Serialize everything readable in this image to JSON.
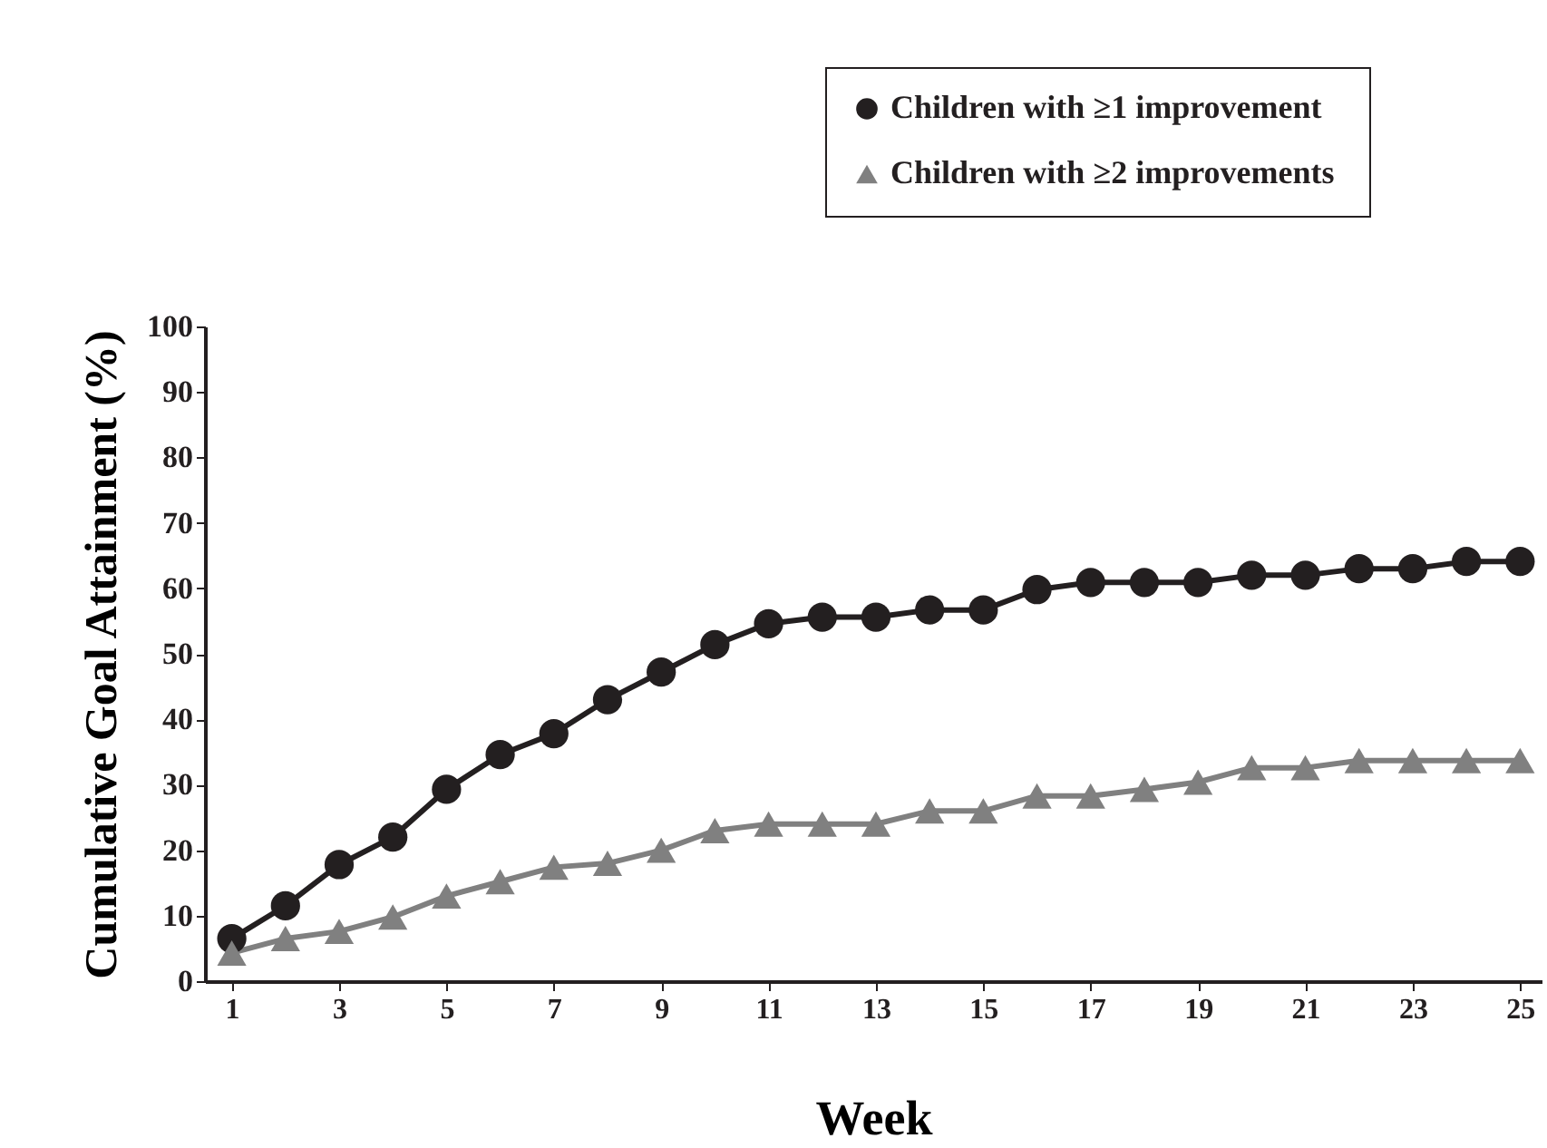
{
  "chart_data": {
    "type": "line",
    "xlabel": "Week",
    "ylabel": "Cumulative Goal Attainment (%)",
    "x": [
      1,
      2,
      3,
      4,
      5,
      6,
      7,
      8,
      9,
      10,
      11,
      12,
      13,
      14,
      15,
      16,
      17,
      18,
      19,
      20,
      21,
      22,
      23,
      24,
      25
    ],
    "xlim": [
      0.5,
      25.4
    ],
    "xticks": [
      1,
      3,
      5,
      7,
      9,
      11,
      13,
      15,
      17,
      19,
      21,
      23,
      25
    ],
    "ylim": [
      0,
      100
    ],
    "yticks": [
      0,
      10,
      20,
      30,
      40,
      50,
      60,
      70,
      80,
      90,
      100
    ],
    "grid": false,
    "legend": "top right",
    "line_style": "solid",
    "series": [
      {
        "name": "Children with  ≥1 improvement",
        "color": "#231f20",
        "marker": "circle",
        "values": [
          6.5,
          11.5,
          17.8,
          22,
          29.3,
          34.6,
          37.8,
          43,
          47.2,
          51.4,
          54.6,
          55.6,
          55.6,
          56.7,
          56.7,
          59.8,
          60.9,
          60.9,
          60.9,
          62,
          62,
          63,
          63,
          64.1,
          64.1
        ]
      },
      {
        "name": "Children with  ≥2 improvements",
        "color": "#808080",
        "marker": "triangle",
        "values": [
          4.3,
          6.5,
          7.6,
          9.8,
          13,
          15.2,
          17.4,
          18,
          20,
          23,
          24,
          24,
          24,
          26,
          26,
          28.3,
          28.3,
          29.3,
          30.4,
          32.6,
          32.6,
          33.7,
          33.7,
          33.7,
          33.7
        ]
      }
    ]
  }
}
